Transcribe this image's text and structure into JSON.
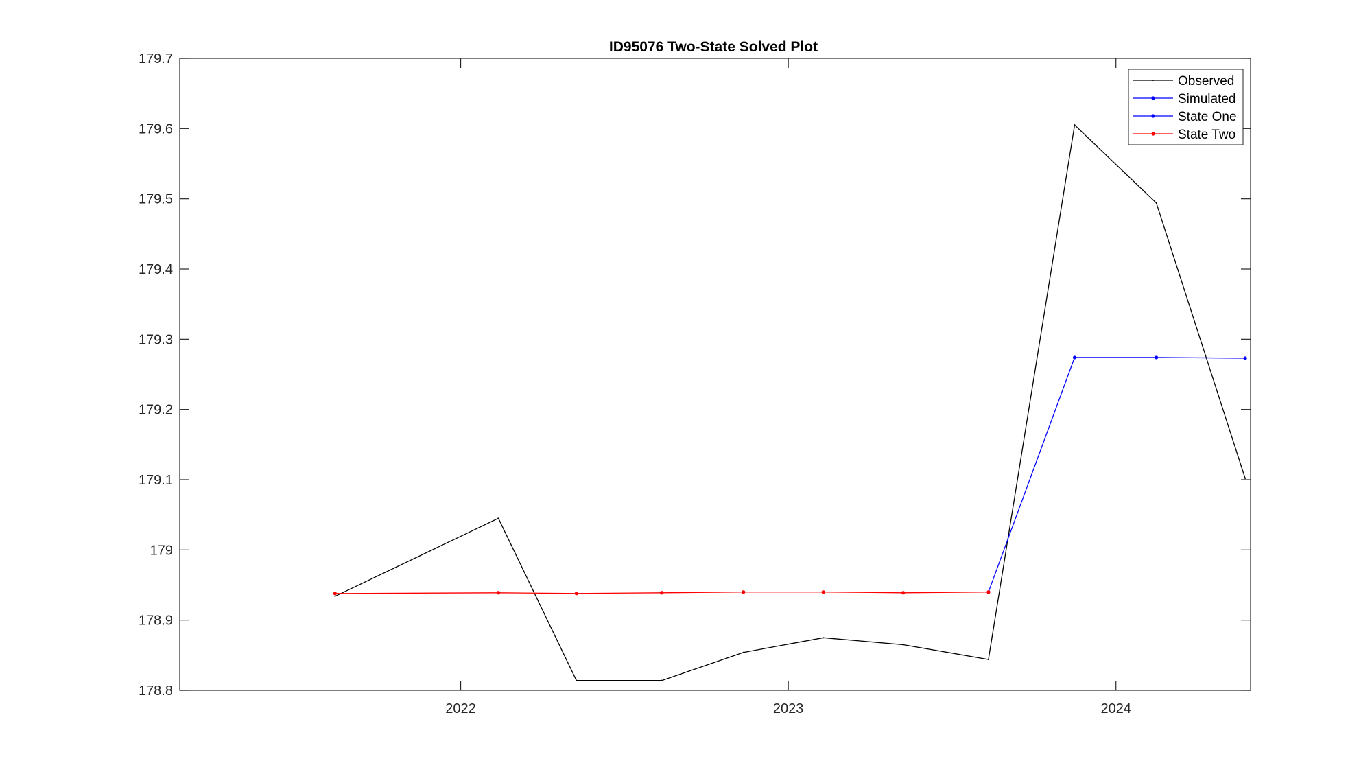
{
  "chart_data": {
    "type": "line",
    "title": "ID95076 Two-State Solved Plot",
    "xlabel": "",
    "ylabel": "",
    "xlim": [
      "2021-02-22",
      "2024-05-30"
    ],
    "ylim": [
      178.8,
      179.7
    ],
    "yticks": [
      178.8,
      178.9,
      179.0,
      179.1,
      179.2,
      179.3,
      179.4,
      179.5,
      179.6,
      179.7
    ],
    "ytick_labels": [
      "178.8",
      "178.9",
      "179",
      "179.1",
      "179.2",
      "179.3",
      "179.4",
      "179.5",
      "179.6",
      "179.7"
    ],
    "xticks": [
      "2022-01-01",
      "2023-01-01",
      "2024-01-01"
    ],
    "xtick_labels": [
      "2022",
      "2023",
      "2024"
    ],
    "grid": false,
    "legend_position": "top-right",
    "series": [
      {
        "name": "Observed",
        "color": "#000000",
        "marker": "tiny-point",
        "points": [
          [
            "2021-08-14",
            178.934
          ],
          [
            "2022-02-12",
            179.045
          ],
          [
            "2022-05-10",
            178.814
          ],
          [
            "2022-08-13",
            178.814
          ],
          [
            "2022-11-12",
            178.854
          ],
          [
            "2023-02-09",
            178.875
          ],
          [
            "2023-05-09",
            178.865
          ],
          [
            "2023-08-12",
            178.844
          ],
          [
            "2023-11-16",
            179.605
          ],
          [
            "2024-02-15",
            179.494
          ],
          [
            "2024-05-24",
            179.102
          ]
        ]
      },
      {
        "name": "Simulated",
        "color": "#0000ff",
        "marker": "dot",
        "points": []
      },
      {
        "name": "State One",
        "color": "#0000ff",
        "marker": "dot",
        "points": [
          [
            "2023-08-12",
            178.94
          ],
          [
            "2023-11-16",
            179.274
          ],
          [
            "2024-02-15",
            179.274
          ],
          [
            "2024-05-24",
            179.273
          ]
        ]
      },
      {
        "name": "State Two",
        "color": "#ff0000",
        "marker": "dot",
        "points": [
          [
            "2021-08-14",
            178.938
          ],
          [
            "2022-02-12",
            178.939
          ],
          [
            "2022-05-10",
            178.938
          ],
          [
            "2022-08-13",
            178.939
          ],
          [
            "2022-11-12",
            178.94
          ],
          [
            "2023-02-09",
            178.94
          ],
          [
            "2023-05-09",
            178.939
          ],
          [
            "2023-08-12",
            178.94
          ]
        ]
      }
    ]
  }
}
